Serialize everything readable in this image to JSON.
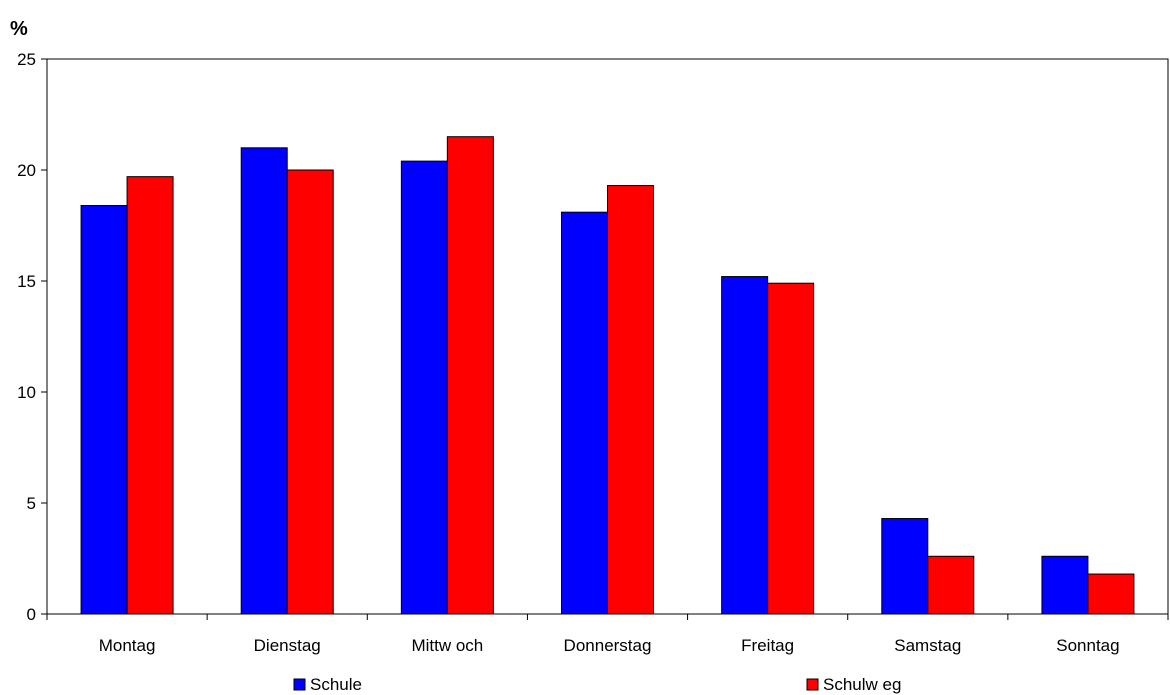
{
  "chart_data": {
    "type": "bar",
    "unit_label": "%",
    "categories": [
      "Montag",
      "Dienstag",
      "Mittw och",
      "Donnerstag",
      "Freitag",
      "Samstag",
      "Sonntag"
    ],
    "series": [
      {
        "name": "Schule",
        "color": "#0000ff",
        "values": [
          18.4,
          21.0,
          20.4,
          18.1,
          15.2,
          4.3,
          2.6
        ]
      },
      {
        "name": "Schulw eg",
        "color": "#ff0000",
        "values": [
          19.7,
          20.0,
          21.5,
          19.3,
          14.9,
          2.6,
          1.8
        ]
      }
    ],
    "ylim": [
      0,
      25
    ],
    "yticks": [
      "0",
      "5",
      "10",
      "15",
      "20",
      "25"
    ],
    "grid": false,
    "legend_position": "bottom",
    "xlabel": "",
    "ylabel": ""
  }
}
